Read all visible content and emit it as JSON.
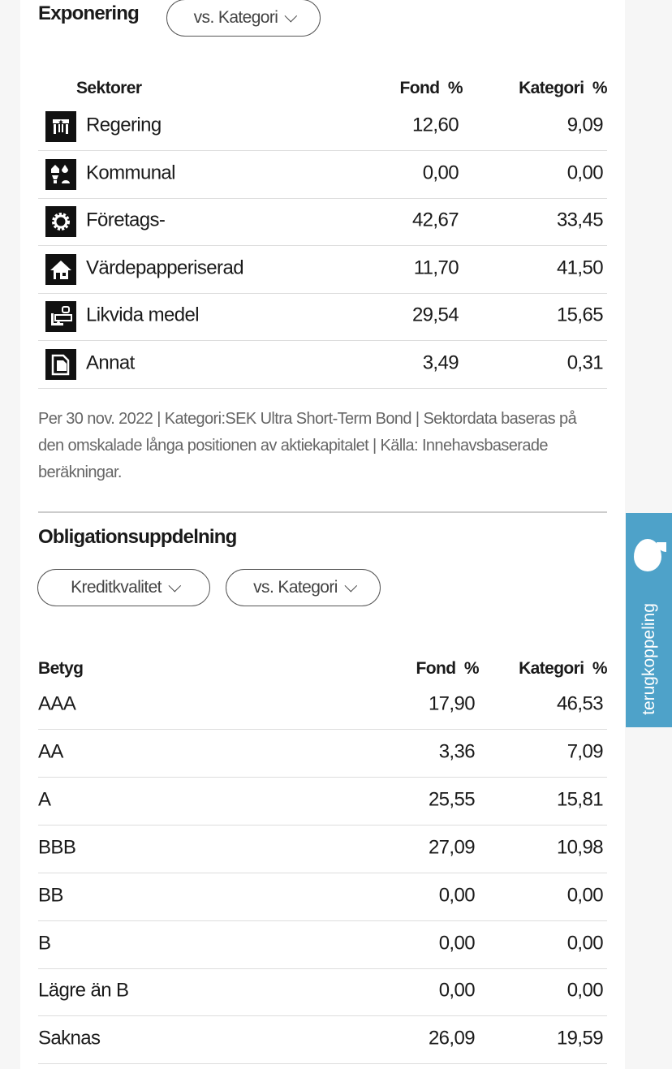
{
  "exposure": {
    "title": "Exponering",
    "compare_pill": "vs. Kategori",
    "headers": {
      "label": "Sektorer",
      "fund": "Fond  %",
      "category": "Kategori  %"
    },
    "rows": [
      {
        "label": "Regering",
        "fund": "12,60",
        "category": "9,09",
        "icon": "government-icon"
      },
      {
        "label": "Kommunal",
        "fund": "0,00",
        "category": "0,00",
        "icon": "municipal-icon"
      },
      {
        "label": "Företags-",
        "fund": "42,67",
        "category": "33,45",
        "icon": "corporate-gear-icon"
      },
      {
        "label": "Värdepapperiserad",
        "fund": "11,70",
        "category": "41,50",
        "icon": "house-icon"
      },
      {
        "label": "Likvida medel",
        "fund": "29,54",
        "category": "15,65",
        "icon": "cash-icon"
      },
      {
        "label": "Annat",
        "fund": "3,49",
        "category": "0,31",
        "icon": "document-icon"
      }
    ],
    "note": "Per 30 nov. 2022 | Kategori:SEK Ultra Short-Term Bond | Sektordata baseras på den omskalade långa positionen av aktiekapitalet | Källa: Innehavsbaserade beräkningar."
  },
  "bonds": {
    "title": "Obligationsuppdelning",
    "filter_pill": "Kreditkvalitet",
    "compare_pill": "vs. Kategori",
    "headers": {
      "label": "Betyg",
      "fund": "Fond  %",
      "category": "Kategori  %"
    },
    "rows": [
      {
        "label": "AAA",
        "fund": "17,90",
        "category": "46,53"
      },
      {
        "label": "AA",
        "fund": "3,36",
        "category": "7,09"
      },
      {
        "label": "A",
        "fund": "25,55",
        "category": "15,81"
      },
      {
        "label": "BBB",
        "fund": "27,09",
        "category": "10,98"
      },
      {
        "label": "BB",
        "fund": "0,00",
        "category": "0,00"
      },
      {
        "label": "B",
        "fund": "0,00",
        "category": "0,00"
      },
      {
        "label": "Lägre än B",
        "fund": "0,00",
        "category": "0,00"
      },
      {
        "label": "Saknas",
        "fund": "26,09",
        "category": "19,59"
      }
    ]
  },
  "feedback": {
    "label": "terugkoppeling",
    "color": "#4ea2c9"
  }
}
